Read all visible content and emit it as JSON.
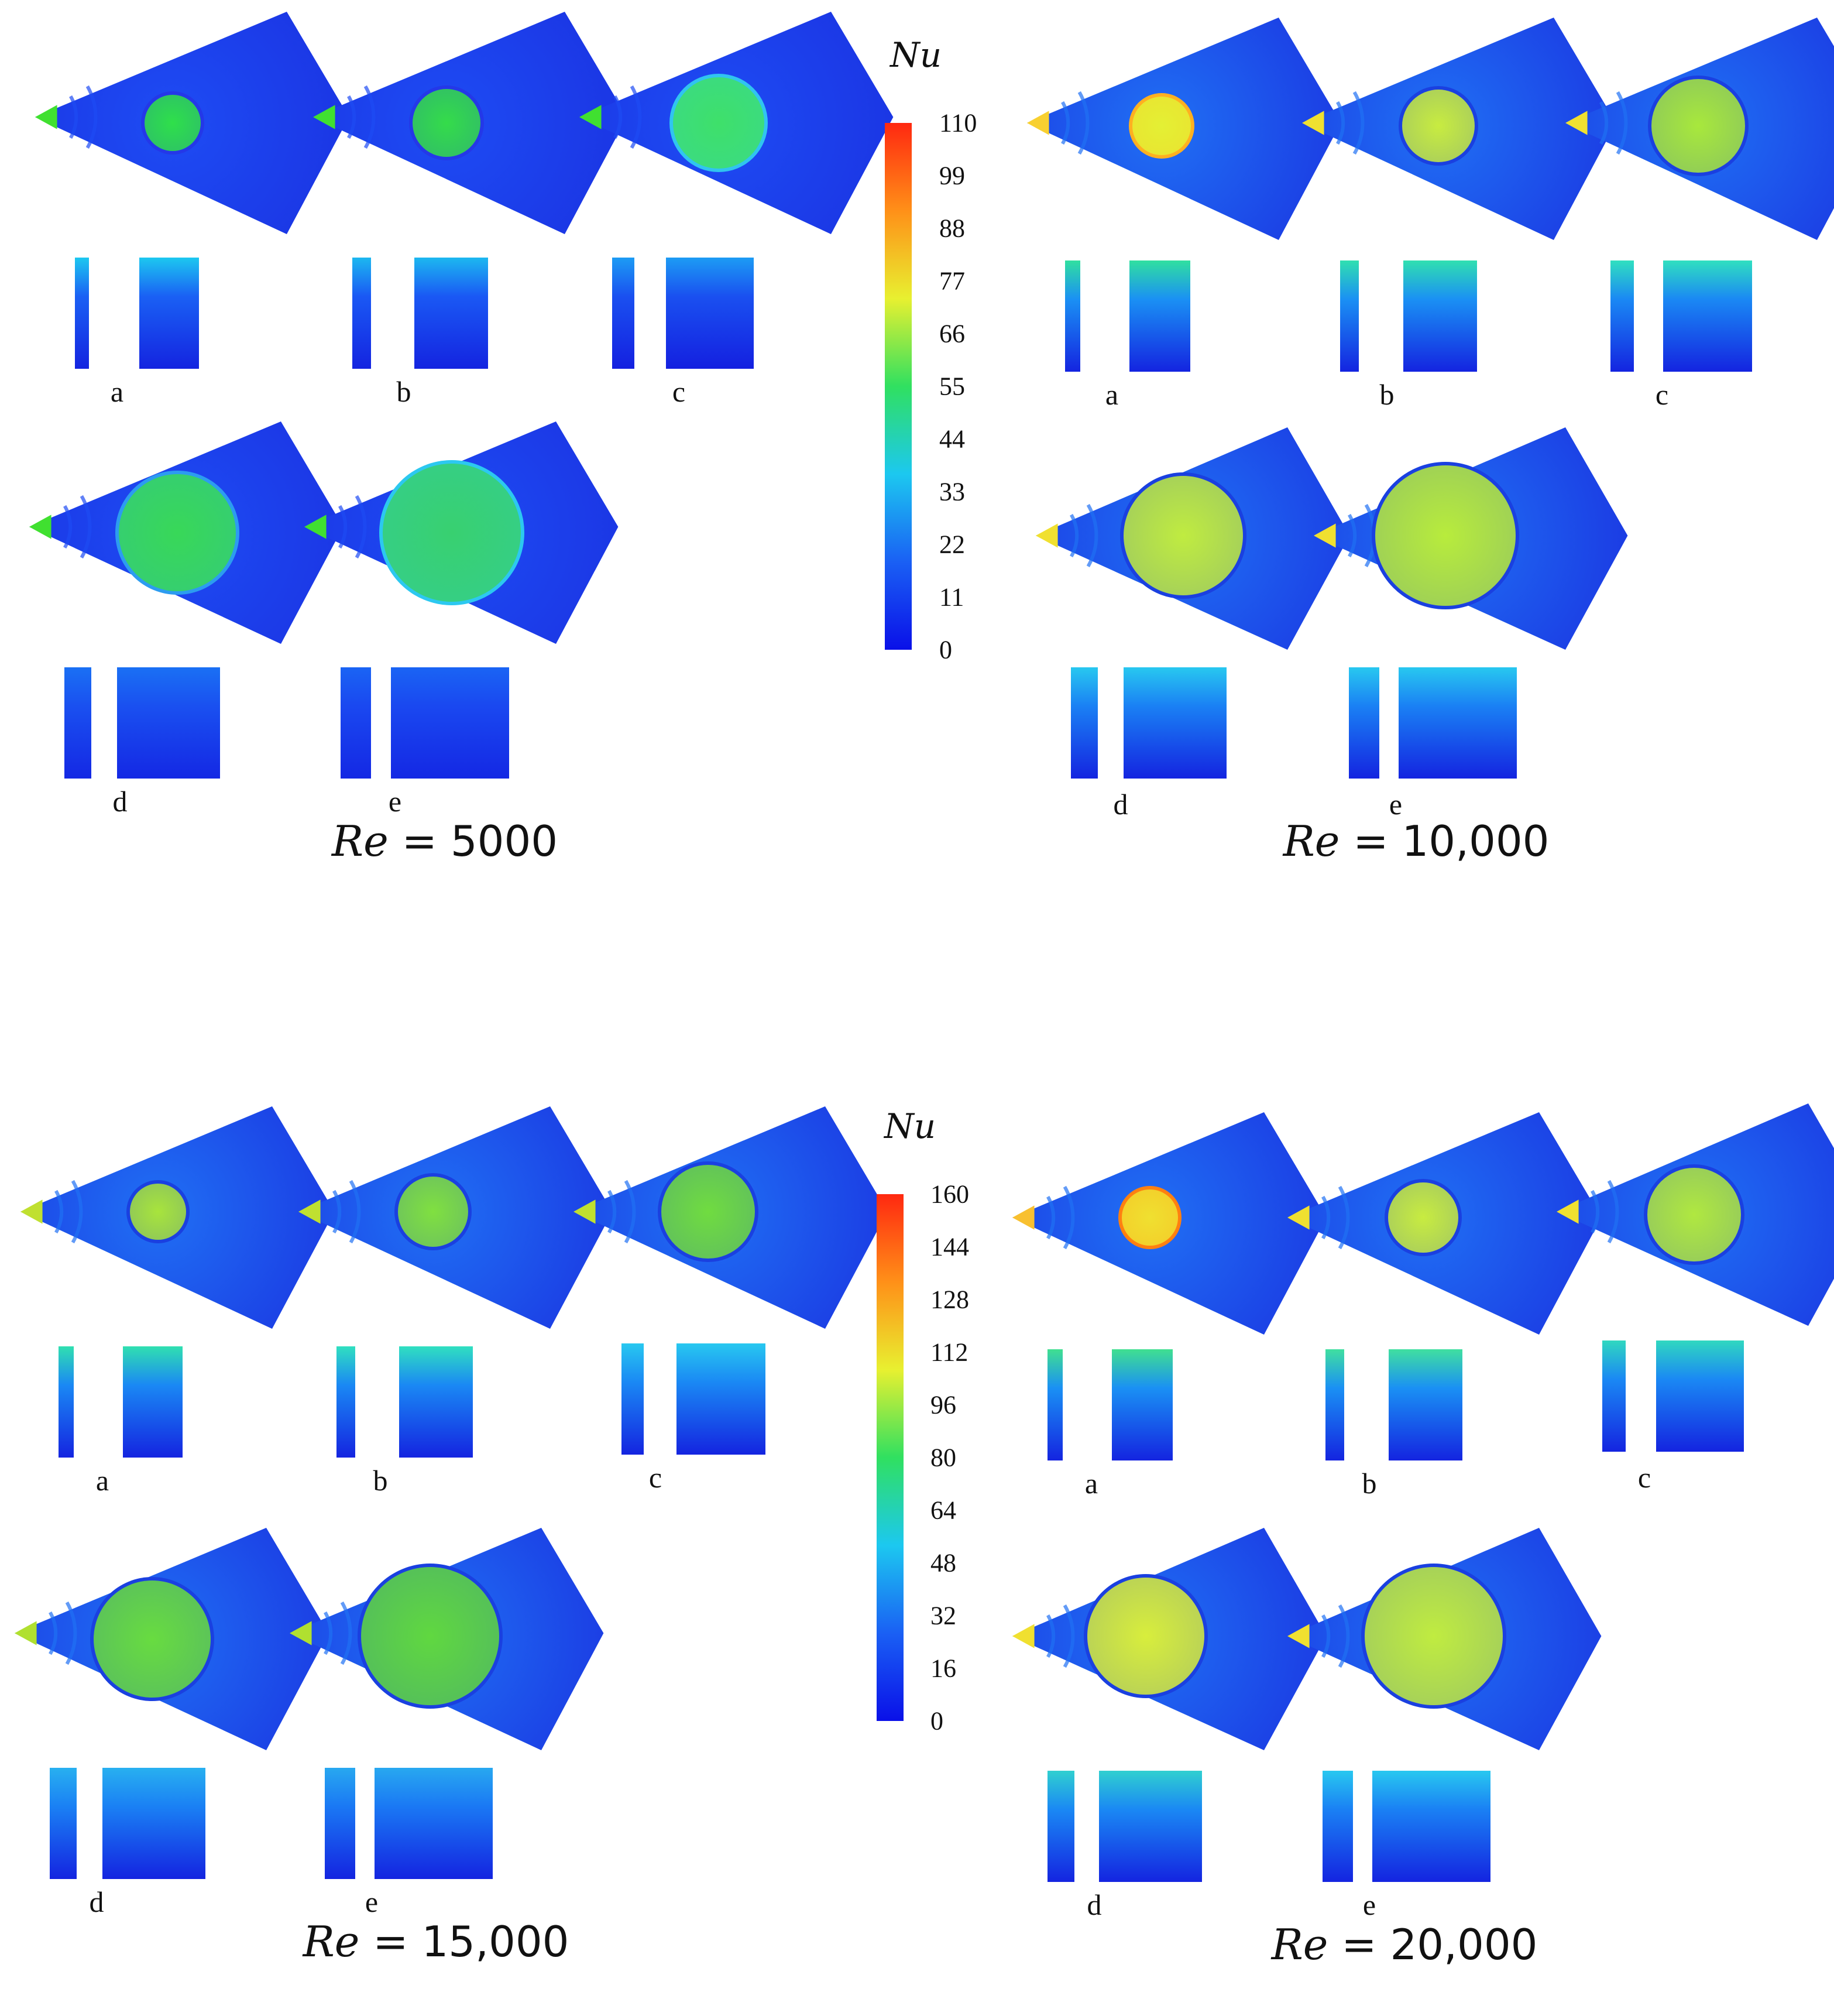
{
  "figure": {
    "panels": [
      {
        "id": "re5000",
        "title_var": "Re",
        "title_eq": " = ",
        "title_num": "5000",
        "colorbar_id": "cb1",
        "cases": [
          {
            "label": "a",
            "core": "#2fe04a",
            "ring": "#2438e8",
            "tip": "#40e030",
            "rim": "#1a30e0",
            "hi": "#1e4cf4",
            "strip_top": "#1cc8f0",
            "strip_mid": "#1a60f4",
            "strip_bot": "#1424e0"
          },
          {
            "label": "b",
            "core": "#34dc4a",
            "ring": "#2438e8",
            "tip": "#40e030",
            "rim": "#1a30e0",
            "hi": "#1e4cf4",
            "strip_top": "#1cb8f0",
            "strip_mid": "#1a58f4",
            "strip_bot": "#1424e0"
          },
          {
            "label": "c",
            "core": "#3ee06a",
            "ring": "#30c4f0",
            "tip": "#40e030",
            "rim": "#1a30e0",
            "hi": "#1e4cf4",
            "strip_top": "#1c9cf4",
            "strip_mid": "#1a50f0",
            "strip_bot": "#1420e0"
          },
          {
            "label": "d",
            "core": "#38d858",
            "ring": "#2c9cf0",
            "tip": "#40e030",
            "rim": "#1a30e0",
            "hi": "#1e4cf4",
            "strip_top": "#1a70f4",
            "strip_mid": "#1a50f0",
            "strip_bot": "#1428e4"
          },
          {
            "label": "e",
            "core": "#38d070",
            "ring": "#2cc8f0",
            "tip": "#40e030",
            "rim": "#1a30e0",
            "hi": "#1e4cf4",
            "strip_top": "#1a64f4",
            "strip_mid": "#1a48f0",
            "strip_bot": "#1428e4"
          }
        ]
      },
      {
        "id": "re10000",
        "title_var": "Re",
        "title_eq": " = ",
        "title_num": "10,000",
        "colorbar_id": "cb1",
        "cases": [
          {
            "label": "a",
            "core": "#e4f034",
            "ring": "#ffb020",
            "tip": "#f8d030",
            "rim": "#1a30e0",
            "hi": "#2070f4",
            "strip_top": "#30e0a0",
            "strip_mid": "#1a90f4",
            "strip_bot": "#1424e0"
          },
          {
            "label": "b",
            "core": "#c8ec40",
            "ring": "#1a40e0",
            "tip": "#f0e030",
            "rim": "#1a30e0",
            "hi": "#2070f4",
            "strip_top": "#30e0b0",
            "strip_mid": "#1a90f4",
            "strip_bot": "#1424e0"
          },
          {
            "label": "c",
            "core": "#a8e83c",
            "ring": "#1a40e0",
            "tip": "#f0e030",
            "rim": "#1a30e0",
            "hi": "#2070f4",
            "strip_top": "#30e0c0",
            "strip_mid": "#1a88f4",
            "strip_bot": "#1424e0"
          },
          {
            "label": "d",
            "core": "#c0ec40",
            "ring": "#1a40e0",
            "tip": "#f0e030",
            "rim": "#1a30e0",
            "hi": "#2070f4",
            "strip_top": "#28c8f0",
            "strip_mid": "#1a80f4",
            "strip_bot": "#1424e0"
          },
          {
            "label": "e",
            "core": "#b8ec3c",
            "ring": "#1a40e0",
            "tip": "#f0e030",
            "rim": "#1a30e0",
            "hi": "#2070f4",
            "strip_top": "#28c8f0",
            "strip_mid": "#1a80f4",
            "strip_bot": "#1424e0"
          }
        ]
      },
      {
        "id": "re15000",
        "title_var": "Re",
        "title_eq": " = ",
        "title_num": "15,000",
        "colorbar_id": "cb2",
        "cases": [
          {
            "label": "a",
            "core": "#a8e43c",
            "ring": "#1a40e0",
            "tip": "#c0e030",
            "rim": "#1a30e0",
            "hi": "#2070f4",
            "strip_top": "#30e0b0",
            "strip_mid": "#1a88f4",
            "strip_bot": "#1424e0"
          },
          {
            "label": "b",
            "core": "#80e040",
            "ring": "#1a40e0",
            "tip": "#c0e030",
            "rim": "#1a30e0",
            "hi": "#2070f4",
            "strip_top": "#30e0c0",
            "strip_mid": "#1a88f4",
            "strip_bot": "#1424e0"
          },
          {
            "label": "c",
            "core": "#70dc40",
            "ring": "#1a40e0",
            "tip": "#c0e030",
            "rim": "#1a30e0",
            "hi": "#2070f4",
            "strip_top": "#28c8f0",
            "strip_mid": "#1a88f4",
            "strip_bot": "#1424e0"
          },
          {
            "label": "d",
            "core": "#68dc40",
            "ring": "#1a40e0",
            "tip": "#b0e030",
            "rim": "#1a30e0",
            "hi": "#2070f4",
            "strip_top": "#28b0f0",
            "strip_mid": "#1a80f4",
            "strip_bot": "#1424e0"
          },
          {
            "label": "e",
            "core": "#60d840",
            "ring": "#1a40e0",
            "tip": "#b0e030",
            "rim": "#1a30e0",
            "hi": "#2070f4",
            "strip_top": "#28a8f0",
            "strip_mid": "#1a78f4",
            "strip_bot": "#1424e0"
          }
        ]
      },
      {
        "id": "re20000",
        "title_var": "Re",
        "title_eq": " = ",
        "title_num": "20,000",
        "colorbar_id": "cb2",
        "cases": [
          {
            "label": "a",
            "core": "#f0e030",
            "ring": "#ff8010",
            "tip": "#f8c030",
            "rim": "#1a30e0",
            "hi": "#2070f4",
            "strip_top": "#40e090",
            "strip_mid": "#1a90f4",
            "strip_bot": "#1424e0"
          },
          {
            "label": "b",
            "core": "#c8ec40",
            "ring": "#1a40e0",
            "tip": "#f0e030",
            "rim": "#1a30e0",
            "hi": "#2070f4",
            "strip_top": "#40e0a0",
            "strip_mid": "#1a90f4",
            "strip_bot": "#1424e0"
          },
          {
            "label": "c",
            "core": "#b0e840",
            "ring": "#1a40e0",
            "tip": "#f0e030",
            "rim": "#1a30e0",
            "hi": "#2070f4",
            "strip_top": "#30d8c0",
            "strip_mid": "#1a88f4",
            "strip_bot": "#1424e0"
          },
          {
            "label": "d",
            "core": "#d8ee3c",
            "ring": "#1a40e0",
            "tip": "#f0e030",
            "rim": "#1a30e0",
            "hi": "#2070f4",
            "strip_top": "#30d0d0",
            "strip_mid": "#1a88f4",
            "strip_bot": "#1424e0"
          },
          {
            "label": "e",
            "core": "#c0ec40",
            "ring": "#1a40e0",
            "tip": "#f0e030",
            "rim": "#1a30e0",
            "hi": "#2070f4",
            "strip_top": "#28c8f0",
            "strip_mid": "#1a80f4",
            "strip_bot": "#1424e0"
          }
        ]
      }
    ],
    "colorbars": [
      {
        "id": "cb1",
        "label": "Nu",
        "ticks": [
          "110",
          "99",
          "88",
          "77",
          "66",
          "55",
          "44",
          "33",
          "22",
          "11",
          "0"
        ],
        "min": 0,
        "max": 110
      },
      {
        "id": "cb2",
        "label": "Nu",
        "ticks": [
          "160",
          "144",
          "128",
          "112",
          "96",
          "80",
          "64",
          "48",
          "32",
          "16",
          "0"
        ],
        "min": 0,
        "max": 160
      }
    ],
    "colormap": [
      "#0a10e8",
      "#1a60f4",
      "#1cc8f0",
      "#30e060",
      "#e8f030",
      "#ff9018",
      "#ff2810"
    ]
  }
}
